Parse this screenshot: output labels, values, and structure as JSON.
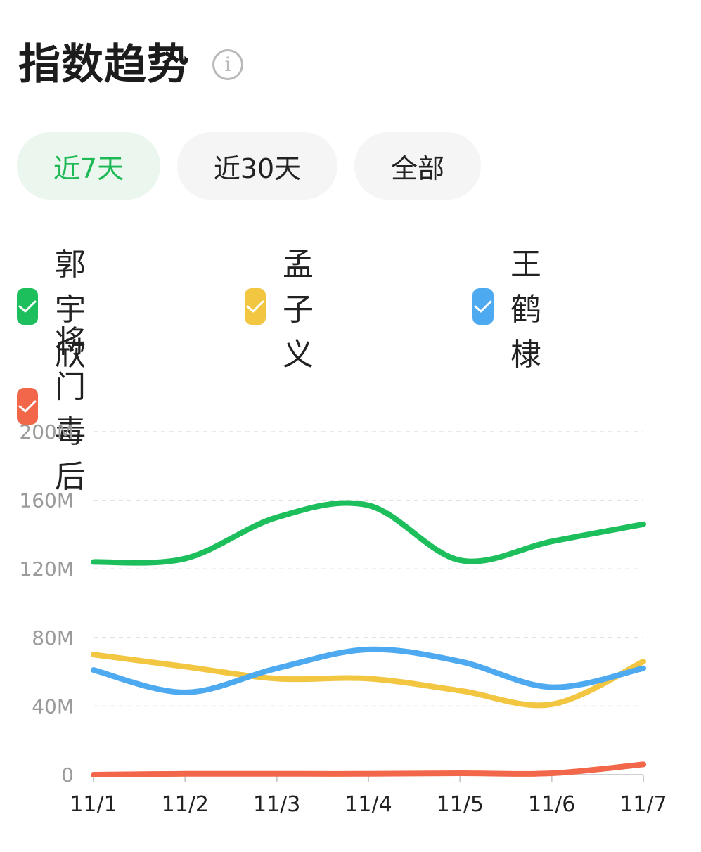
{
  "header": {
    "title": "指数趋势",
    "info_icon": "info-icon"
  },
  "tabs": [
    {
      "label": "近7天",
      "selected": true
    },
    {
      "label": "近30天",
      "selected": false
    },
    {
      "label": "全部",
      "selected": false
    }
  ],
  "legend": [
    {
      "label": "郭宇欣",
      "color": "#1dbf5c",
      "checked": true
    },
    {
      "label": "孟子义",
      "color": "#f2c641",
      "checked": true
    },
    {
      "label": "王鹤棣",
      "color": "#4eaaf0",
      "checked": true
    },
    {
      "label": "将门毒后",
      "color": "#f2664a",
      "checked": true
    }
  ],
  "chart_data": {
    "type": "line",
    "title": "",
    "xlabel": "",
    "ylabel": "",
    "x": [
      "11/1",
      "11/2",
      "11/3",
      "11/4",
      "11/5",
      "11/6",
      "11/7"
    ],
    "y_ticks": [
      "0",
      "40M",
      "80M",
      "120M",
      "160M",
      "200M"
    ],
    "ylim": [
      0,
      200
    ],
    "y_unit": "M",
    "grid": true,
    "series": [
      {
        "name": "郭宇欣",
        "color": "#1dbf5c",
        "values": [
          124,
          126,
          150,
          157,
          125,
          136,
          146
        ]
      },
      {
        "name": "孟子义",
        "color": "#f2c641",
        "values": [
          70,
          63,
          56,
          56,
          49,
          41,
          66
        ]
      },
      {
        "name": "王鹤棣",
        "color": "#4eaaf0",
        "values": [
          61,
          48,
          62,
          73,
          66,
          51,
          62
        ]
      },
      {
        "name": "将门毒后",
        "color": "#f2664a",
        "values": [
          0,
          0.5,
          0.5,
          0.5,
          0.8,
          0.8,
          6
        ]
      }
    ]
  }
}
